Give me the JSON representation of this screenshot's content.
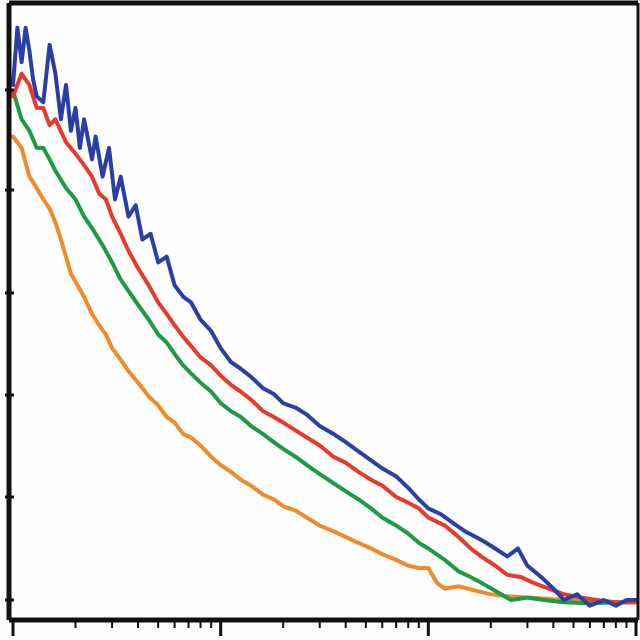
{
  "chart_data": {
    "type": "line",
    "title": "",
    "xlabel": "",
    "ylabel": "",
    "x_scale": "log",
    "xlim": [
      0.1,
      100
    ],
    "ylim": [
      0,
      5
    ],
    "grid": false,
    "legend": "none",
    "series": [
      {
        "color": "#2a3fa6",
        "points": [
          [
            0.1,
            4.5
          ],
          [
            0.105,
            5.0
          ],
          [
            0.11,
            4.7
          ],
          [
            0.115,
            5.0
          ],
          [
            0.12,
            4.8
          ],
          [
            0.125,
            4.55
          ],
          [
            0.13,
            4.4
          ],
          [
            0.14,
            4.35
          ],
          [
            0.15,
            4.85
          ],
          [
            0.16,
            4.6
          ],
          [
            0.17,
            4.2
          ],
          [
            0.18,
            4.5
          ],
          [
            0.19,
            4.1
          ],
          [
            0.2,
            4.3
          ],
          [
            0.21,
            3.95
          ],
          [
            0.22,
            4.2
          ],
          [
            0.24,
            3.85
          ],
          [
            0.25,
            4.05
          ],
          [
            0.27,
            3.7
          ],
          [
            0.29,
            3.95
          ],
          [
            0.31,
            3.5
          ],
          [
            0.33,
            3.7
          ],
          [
            0.36,
            3.35
          ],
          [
            0.39,
            3.45
          ],
          [
            0.42,
            3.15
          ],
          [
            0.46,
            3.2
          ],
          [
            0.5,
            2.95
          ],
          [
            0.55,
            3.0
          ],
          [
            0.6,
            2.75
          ],
          [
            0.66,
            2.65
          ],
          [
            0.72,
            2.6
          ],
          [
            0.8,
            2.45
          ],
          [
            0.9,
            2.35
          ],
          [
            1.0,
            2.2
          ],
          [
            1.12,
            2.08
          ],
          [
            1.25,
            2.02
          ],
          [
            1.4,
            1.95
          ],
          [
            1.6,
            1.85
          ],
          [
            1.8,
            1.8
          ],
          [
            2.0,
            1.72
          ],
          [
            2.3,
            1.68
          ],
          [
            2.6,
            1.62
          ],
          [
            3.0,
            1.52
          ],
          [
            3.5,
            1.45
          ],
          [
            4.0,
            1.38
          ],
          [
            4.6,
            1.3
          ],
          [
            5.3,
            1.22
          ],
          [
            6.0,
            1.15
          ],
          [
            7.0,
            1.08
          ],
          [
            8.0,
            0.98
          ],
          [
            9.0,
            0.88
          ],
          [
            10.0,
            0.8
          ],
          [
            11.5,
            0.75
          ],
          [
            13.0,
            0.68
          ],
          [
            15.0,
            0.6
          ],
          [
            17.0,
            0.55
          ],
          [
            19.0,
            0.5
          ],
          [
            21.0,
            0.45
          ],
          [
            24.0,
            0.38
          ],
          [
            27.0,
            0.45
          ],
          [
            30.0,
            0.3
          ],
          [
            35.0,
            0.2
          ],
          [
            40.0,
            0.1
          ],
          [
            45.0,
            0.0
          ],
          [
            52.0,
            0.05
          ],
          [
            60.0,
            -0.05
          ],
          [
            70.0,
            0.0
          ],
          [
            80.0,
            -0.05
          ],
          [
            90.0,
            0.0
          ],
          [
            100.0,
            0.0
          ]
        ]
      },
      {
        "color": "#e83a2a",
        "points": [
          [
            0.1,
            4.4
          ],
          [
            0.11,
            4.6
          ],
          [
            0.12,
            4.5
          ],
          [
            0.13,
            4.3
          ],
          [
            0.14,
            4.3
          ],
          [
            0.15,
            4.15
          ],
          [
            0.16,
            4.2
          ],
          [
            0.18,
            4.0
          ],
          [
            0.2,
            3.9
          ],
          [
            0.22,
            3.8
          ],
          [
            0.24,
            3.7
          ],
          [
            0.26,
            3.55
          ],
          [
            0.28,
            3.5
          ],
          [
            0.3,
            3.35
          ],
          [
            0.33,
            3.2
          ],
          [
            0.36,
            3.05
          ],
          [
            0.4,
            2.9
          ],
          [
            0.45,
            2.75
          ],
          [
            0.5,
            2.6
          ],
          [
            0.55,
            2.5
          ],
          [
            0.6,
            2.4
          ],
          [
            0.66,
            2.3
          ],
          [
            0.72,
            2.22
          ],
          [
            0.8,
            2.12
          ],
          [
            0.9,
            2.05
          ],
          [
            1.0,
            1.96
          ],
          [
            1.12,
            1.88
          ],
          [
            1.25,
            1.82
          ],
          [
            1.4,
            1.75
          ],
          [
            1.6,
            1.65
          ],
          [
            1.8,
            1.6
          ],
          [
            2.0,
            1.55
          ],
          [
            2.3,
            1.48
          ],
          [
            2.6,
            1.42
          ],
          [
            3.0,
            1.35
          ],
          [
            3.5,
            1.25
          ],
          [
            4.0,
            1.2
          ],
          [
            4.6,
            1.12
          ],
          [
            5.3,
            1.05
          ],
          [
            6.0,
            1.0
          ],
          [
            7.0,
            0.9
          ],
          [
            8.0,
            0.85
          ],
          [
            9.0,
            0.8
          ],
          [
            10.0,
            0.72
          ],
          [
            12.0,
            0.65
          ],
          [
            14.0,
            0.55
          ],
          [
            16.0,
            0.45
          ],
          [
            18.0,
            0.38
          ],
          [
            21.0,
            0.3
          ],
          [
            24.0,
            0.22
          ],
          [
            28.0,
            0.2
          ],
          [
            32.0,
            0.15
          ],
          [
            38.0,
            0.1
          ],
          [
            45.0,
            0.05
          ],
          [
            55.0,
            0.02
          ],
          [
            65.0,
            0.0
          ],
          [
            80.0,
            -0.02
          ],
          [
            100.0,
            -0.02
          ]
        ]
      },
      {
        "color": "#1e9a45",
        "points": [
          [
            0.1,
            4.45
          ],
          [
            0.11,
            4.2
          ],
          [
            0.12,
            4.1
          ],
          [
            0.13,
            3.95
          ],
          [
            0.14,
            3.95
          ],
          [
            0.15,
            3.85
          ],
          [
            0.16,
            3.75
          ],
          [
            0.18,
            3.6
          ],
          [
            0.2,
            3.5
          ],
          [
            0.22,
            3.35
          ],
          [
            0.24,
            3.25
          ],
          [
            0.27,
            3.1
          ],
          [
            0.3,
            2.95
          ],
          [
            0.33,
            2.8
          ],
          [
            0.36,
            2.7
          ],
          [
            0.4,
            2.58
          ],
          [
            0.45,
            2.45
          ],
          [
            0.5,
            2.32
          ],
          [
            0.55,
            2.25
          ],
          [
            0.6,
            2.15
          ],
          [
            0.66,
            2.05
          ],
          [
            0.72,
            1.98
          ],
          [
            0.8,
            1.9
          ],
          [
            0.9,
            1.82
          ],
          [
            1.0,
            1.72
          ],
          [
            1.12,
            1.65
          ],
          [
            1.25,
            1.6
          ],
          [
            1.4,
            1.52
          ],
          [
            1.6,
            1.45
          ],
          [
            1.8,
            1.38
          ],
          [
            2.0,
            1.32
          ],
          [
            2.3,
            1.25
          ],
          [
            2.6,
            1.18
          ],
          [
            3.0,
            1.1
          ],
          [
            3.5,
            1.02
          ],
          [
            4.0,
            0.95
          ],
          [
            4.6,
            0.88
          ],
          [
            5.3,
            0.8
          ],
          [
            6.0,
            0.72
          ],
          [
            7.0,
            0.65
          ],
          [
            8.0,
            0.58
          ],
          [
            9.0,
            0.5
          ],
          [
            10.0,
            0.45
          ],
          [
            12.0,
            0.35
          ],
          [
            14.0,
            0.25
          ],
          [
            16.0,
            0.2
          ],
          [
            18.0,
            0.15
          ],
          [
            21.0,
            0.08
          ],
          [
            25.0,
            0.0
          ],
          [
            30.0,
            0.02
          ],
          [
            36.0,
            0.0
          ],
          [
            45.0,
            -0.02
          ],
          [
            60.0,
            -0.03
          ],
          [
            80.0,
            -0.02
          ],
          [
            100.0,
            -0.02
          ]
        ]
      },
      {
        "color": "#f08a2a",
        "points": [
          [
            0.1,
            4.05
          ],
          [
            0.11,
            3.95
          ],
          [
            0.12,
            3.7
          ],
          [
            0.13,
            3.6
          ],
          [
            0.14,
            3.5
          ],
          [
            0.15,
            3.42
          ],
          [
            0.16,
            3.3
          ],
          [
            0.17,
            3.15
          ],
          [
            0.18,
            3.0
          ],
          [
            0.19,
            2.85
          ],
          [
            0.2,
            2.78
          ],
          [
            0.22,
            2.65
          ],
          [
            0.24,
            2.5
          ],
          [
            0.26,
            2.4
          ],
          [
            0.28,
            2.32
          ],
          [
            0.3,
            2.2
          ],
          [
            0.33,
            2.1
          ],
          [
            0.36,
            2.0
          ],
          [
            0.4,
            1.9
          ],
          [
            0.45,
            1.78
          ],
          [
            0.5,
            1.7
          ],
          [
            0.55,
            1.6
          ],
          [
            0.6,
            1.55
          ],
          [
            0.66,
            1.45
          ],
          [
            0.72,
            1.42
          ],
          [
            0.8,
            1.35
          ],
          [
            0.9,
            1.25
          ],
          [
            1.0,
            1.18
          ],
          [
            1.12,
            1.12
          ],
          [
            1.25,
            1.05
          ],
          [
            1.4,
            1.0
          ],
          [
            1.6,
            0.92
          ],
          [
            1.8,
            0.88
          ],
          [
            2.0,
            0.82
          ],
          [
            2.3,
            0.78
          ],
          [
            2.6,
            0.72
          ],
          [
            3.0,
            0.65
          ],
          [
            3.5,
            0.6
          ],
          [
            4.0,
            0.55
          ],
          [
            4.6,
            0.5
          ],
          [
            5.3,
            0.45
          ],
          [
            6.0,
            0.4
          ],
          [
            7.0,
            0.35
          ],
          [
            8.0,
            0.3
          ],
          [
            9.0,
            0.28
          ],
          [
            10.0,
            0.28
          ],
          [
            11.0,
            0.15
          ],
          [
            12.0,
            0.1
          ],
          [
            14.0,
            0.12
          ],
          [
            17.0,
            0.08
          ],
          [
            20.0,
            0.05
          ],
          [
            25.0,
            0.03
          ],
          [
            32.0,
            0.02
          ],
          [
            45.0,
            0.0
          ],
          [
            60.0,
            0.0
          ],
          [
            80.0,
            -0.02
          ],
          [
            100.0,
            -0.02
          ]
        ]
      }
    ]
  }
}
